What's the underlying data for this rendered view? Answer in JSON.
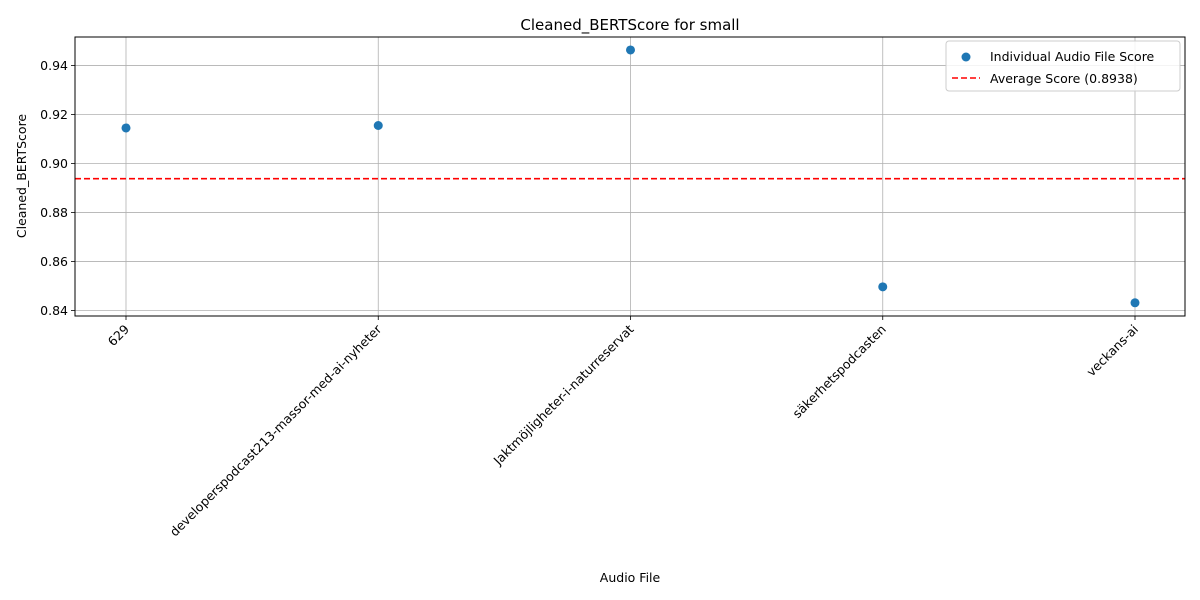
{
  "chart_data": {
    "type": "scatter",
    "title": "Cleaned_BERTScore for small",
    "xlabel": "Audio File",
    "ylabel": "Cleaned_BERTScore",
    "categories": [
      "629",
      "developerspodcast213-massor-med-ai-nyheter",
      "Jaktmöjligheter-i-naturreservat",
      "säkerhetspodcasten",
      "veckans-ai"
    ],
    "series": [
      {
        "name": "Individual Audio File Score",
        "values": [
          0.9145,
          0.9155,
          0.9463,
          0.8497,
          0.8432
        ],
        "color": "#1f77b4"
      }
    ],
    "average": {
      "label": "Average Score (0.8938)",
      "value": 0.8938,
      "color": "#ff0000"
    },
    "ylim": [
      0.8378,
      0.9516
    ],
    "yticks": [
      0.84,
      0.86,
      0.88,
      0.9,
      0.92,
      0.94
    ],
    "ytick_labels": [
      "0.84",
      "0.86",
      "0.88",
      "0.90",
      "0.92",
      "0.94"
    ],
    "grid": true,
    "legend_position": "top-right"
  }
}
